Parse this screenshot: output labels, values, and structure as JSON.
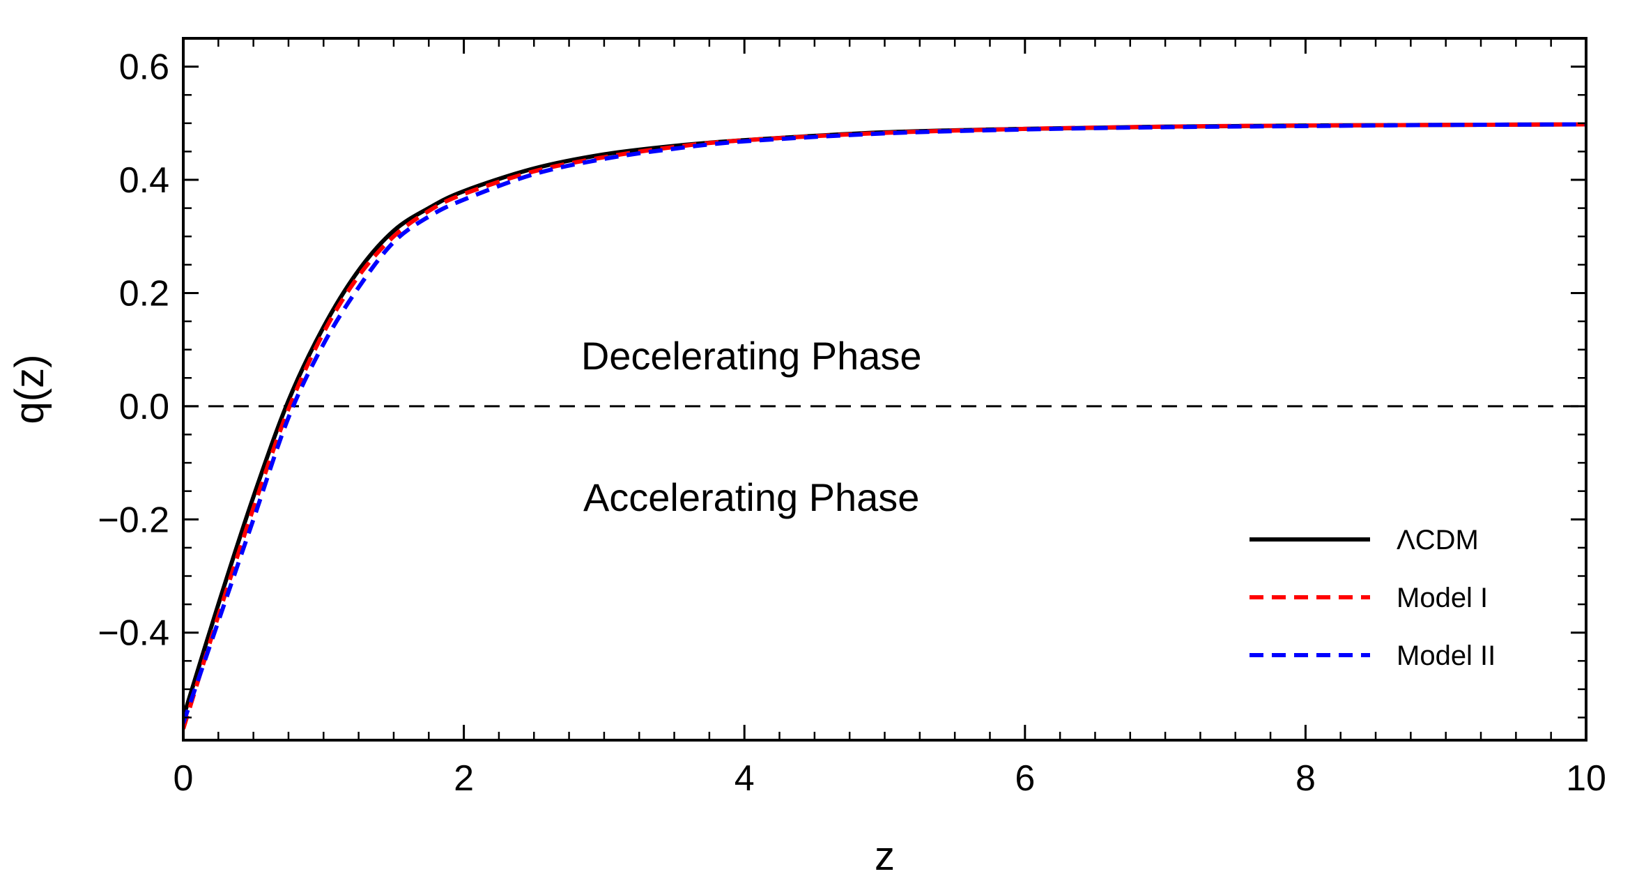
{
  "chart_data": {
    "type": "line",
    "title": "",
    "xlabel": "z",
    "ylabel": "q(z)",
    "xlim": [
      0,
      10
    ],
    "ylim": [
      -0.59,
      0.65
    ],
    "x_ticks": [
      0,
      2,
      4,
      6,
      8,
      10
    ],
    "x_tick_labels": [
      "0",
      "2",
      "4",
      "6",
      "8",
      "10"
    ],
    "y_ticks": [
      -0.4,
      -0.2,
      0.0,
      0.2,
      0.4,
      0.6
    ],
    "y_tick_labels": [
      "−0.4",
      "−0.2",
      "0.0",
      "0.2",
      "0.4",
      "0.6"
    ],
    "reference_line": {
      "y": 0.0,
      "style": "dashed",
      "color": "#000000"
    },
    "annotations": [
      {
        "text": "Decelerating Phase",
        "x": 4.0,
        "y": 0.09
      },
      {
        "text": "Accelerating Phase",
        "x": 4.0,
        "y": -0.16
      }
    ],
    "legend": {
      "position": "bottom-right"
    },
    "x": [
      0,
      0.25,
      0.5,
      0.75,
      1.0,
      1.25,
      1.5,
      1.75,
      2.0,
      2.5,
      3.0,
      3.5,
      4.0,
      5.0,
      6.0,
      7.0,
      8.0,
      9.0,
      10.0
    ],
    "series": [
      {
        "name": "ΛCDM",
        "color": "#000000",
        "style": "solid",
        "values": [
          -0.55,
          -0.35,
          -0.16,
          0.01,
          0.14,
          0.24,
          0.31,
          0.35,
          0.38,
          0.42,
          0.445,
          0.46,
          0.47,
          0.484,
          0.49,
          0.494,
          0.496,
          0.497,
          0.498
        ]
      },
      {
        "name": "Model I",
        "color": "#ff0000",
        "style": "dashed",
        "values": [
          -0.57,
          -0.37,
          -0.18,
          -0.005,
          0.13,
          0.23,
          0.3,
          0.345,
          0.375,
          0.415,
          0.44,
          0.458,
          0.47,
          0.483,
          0.49,
          0.494,
          0.496,
          0.497,
          0.498
        ]
      },
      {
        "name": "Model II",
        "color": "#0000ff",
        "style": "dashed",
        "values": [
          -0.56,
          -0.38,
          -0.2,
          -0.02,
          0.11,
          0.21,
          0.29,
          0.335,
          0.365,
          0.41,
          0.437,
          0.455,
          0.468,
          0.482,
          0.489,
          0.493,
          0.495,
          0.497,
          0.498
        ]
      }
    ]
  }
}
